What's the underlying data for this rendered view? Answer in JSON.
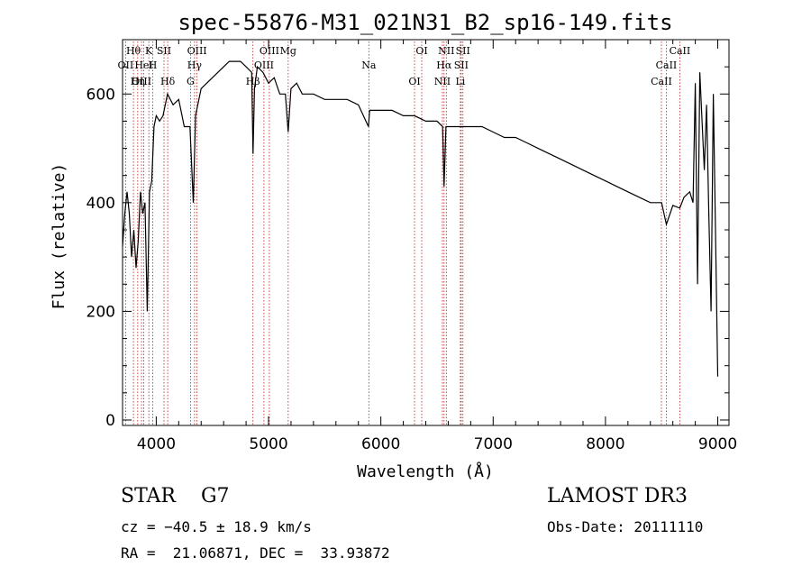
{
  "chart_data": {
    "type": "line",
    "title": "spec-55876-M31_021N31_B2_sp16-149.fits",
    "xlabel": "Wavelength (Å)",
    "ylabel": "Flux (relative)",
    "xlim": [
      3700,
      9100
    ],
    "ylim": [
      -10,
      700
    ],
    "x_ticks": [
      4000,
      5000,
      6000,
      7000,
      8000,
      9000
    ],
    "y_ticks": [
      0,
      200,
      400,
      600
    ],
    "grid": false,
    "series": [
      {
        "x": [
          3700,
          3720,
          3740,
          3760,
          3780,
          3800,
          3820,
          3840,
          3860,
          3880,
          3900,
          3920,
          3940,
          3960,
          3980,
          4000,
          4030,
          4060,
          4100,
          4150,
          4200,
          4250,
          4300,
          4330,
          4350,
          4400,
          4450,
          4500,
          4550,
          4600,
          4650,
          4700,
          4750,
          4800,
          4850,
          4862,
          4875,
          4900,
          4950,
          5000,
          5050,
          5100,
          5150,
          5175,
          5200,
          5250,
          5300,
          5400,
          5500,
          5600,
          5700,
          5800,
          5890,
          5900,
          6000,
          6100,
          6200,
          6300,
          6400,
          6500,
          6550,
          6563,
          6580,
          6600,
          6700,
          6800,
          6900,
          7000,
          7100,
          7200,
          7300,
          7400,
          7500,
          7600,
          7700,
          7800,
          7900,
          8000,
          8100,
          8200,
          8300,
          8400,
          8500,
          8542,
          8600,
          8662,
          8700,
          8750,
          8780,
          8800,
          8820,
          8840,
          8860,
          8880,
          8900,
          8920,
          8940,
          8960,
          8980,
          9000
        ],
        "y": [
          320,
          380,
          420,
          380,
          300,
          350,
          280,
          330,
          420,
          380,
          400,
          200,
          420,
          440,
          540,
          560,
          550,
          560,
          600,
          580,
          590,
          540,
          540,
          400,
          560,
          610,
          620,
          630,
          640,
          650,
          660,
          660,
          660,
          650,
          640,
          490,
          610,
          650,
          640,
          620,
          630,
          600,
          600,
          530,
          610,
          620,
          600,
          600,
          590,
          590,
          590,
          580,
          540,
          570,
          570,
          570,
          560,
          560,
          550,
          550,
          540,
          430,
          540,
          540,
          540,
          540,
          540,
          530,
          520,
          520,
          510,
          500,
          490,
          480,
          470,
          460,
          450,
          440,
          430,
          420,
          410,
          400,
          400,
          360,
          395,
          390,
          410,
          420,
          400,
          620,
          250,
          640,
          550,
          460,
          580,
          380,
          200,
          600,
          350,
          80
        ]
      }
    ],
    "lines": [
      {
        "label": "Hθ",
        "wave": 3797
      },
      {
        "label": "OII",
        "wave": 3727
      },
      {
        "label": "OIII",
        "wave": 3869
      },
      {
        "label": "K",
        "wave": 3934
      },
      {
        "label": "HeI",
        "wave": 3889
      },
      {
        "label": "Hη",
        "wave": 3835
      },
      {
        "label": "SII",
        "wave": 4069
      },
      {
        "label": "H",
        "wave": 3969
      },
      {
        "label": "Hδ",
        "wave": 4102
      },
      {
        "label": "OIII",
        "wave": 4363
      },
      {
        "label": "Hγ",
        "wave": 4341
      },
      {
        "label": "G",
        "wave": 4305
      },
      {
        "label": "OIII",
        "wave": 5007
      },
      {
        "label": "OIII",
        "wave": 4959
      },
      {
        "label": "Hβ",
        "wave": 4861
      },
      {
        "label": "Mg",
        "wave": 5175
      },
      {
        "label": "Na",
        "wave": 5893
      },
      {
        "label": "OI",
        "wave": 6300
      },
      {
        "label": "OI",
        "wave": 6364
      },
      {
        "label": "Hα",
        "wave": 6563
      },
      {
        "label": "NII",
        "wave": 6548
      },
      {
        "label": "NII",
        "wave": 6583
      },
      {
        "label": "SII",
        "wave": 6716
      },
      {
        "label": "Li",
        "wave": 6708
      },
      {
        "label": "SII",
        "wave": 6731
      },
      {
        "label": "CaII",
        "wave": 8542
      },
      {
        "label": "CaII",
        "wave": 8498
      },
      {
        "label": "CaII",
        "wave": 8662
      }
    ]
  },
  "info": {
    "classification": "STAR",
    "subclass": "G7",
    "survey": "LAMOST DR3",
    "cz": "cz = −40.5 ± 18.9 km/s",
    "obs_date": "Obs-Date: 20111110",
    "radec": "RA =  21.06871, DEC =  33.93872"
  }
}
